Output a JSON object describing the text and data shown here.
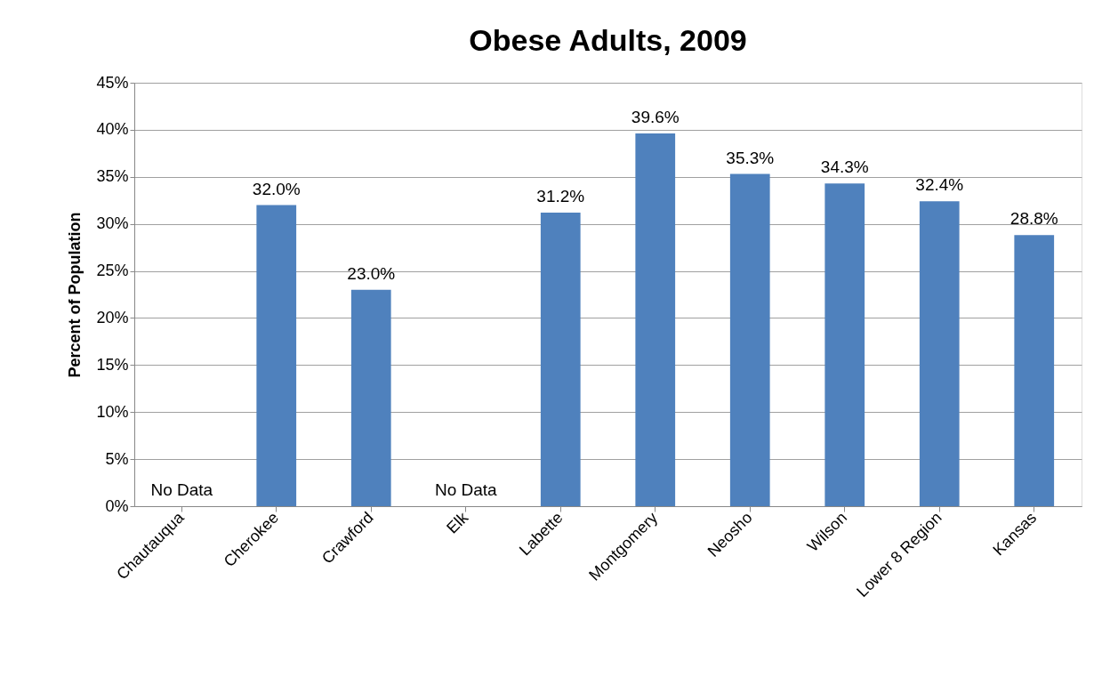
{
  "chart_data": {
    "type": "bar",
    "title": "Obese Adults, 2009",
    "ylabel": "Percent of Population",
    "categories": [
      "Chautauqua",
      "Cherokee",
      "Crawford",
      "Elk",
      "Labette",
      "Montgomery",
      "Neosho",
      "Wilson",
      "Lower 8 Region",
      "Kansas"
    ],
    "values": [
      null,
      32.0,
      23.0,
      null,
      31.2,
      39.6,
      35.3,
      34.3,
      32.4,
      28.8
    ],
    "value_labels": [
      "No Data",
      "32.0%",
      "23.0%",
      "No Data",
      "31.2%",
      "39.6%",
      "35.3%",
      "34.3%",
      "32.4%",
      "28.8%"
    ],
    "color": "#4f81bd",
    "ylim": [
      0,
      45
    ],
    "yticks": [
      {
        "value": 0,
        "label": "0%"
      },
      {
        "value": 5,
        "label": "5%"
      },
      {
        "value": 10,
        "label": "10%"
      },
      {
        "value": 15,
        "label": "15%"
      },
      {
        "value": 20,
        "label": "20%"
      },
      {
        "value": 25,
        "label": "25%"
      },
      {
        "value": 30,
        "label": "30%"
      },
      {
        "value": 35,
        "label": "35%"
      },
      {
        "value": 40,
        "label": "40%"
      },
      {
        "value": 45,
        "label": "45%"
      }
    ],
    "grid": "y"
  }
}
